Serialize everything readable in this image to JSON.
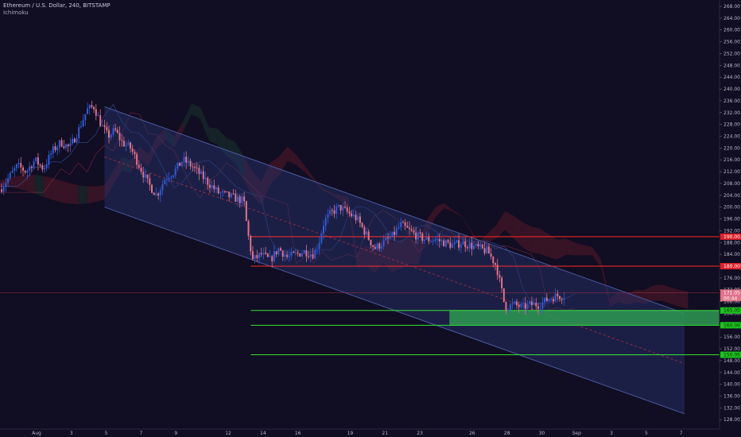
{
  "header": {
    "symbol": "Ethereum / U.S. Dollar, 240, BITSTAMP",
    "indicator": "Ichimoku"
  },
  "colors": {
    "background": "#110d22",
    "up_candle": "#2f5bd6",
    "down_candle": "#e0728a",
    "resistance_line": "#ff2a2a",
    "support_line": "#38e038",
    "channel_fill": "#2a3670",
    "support_zone": "#2e9a52",
    "cloud_bear": "#7a1f2c",
    "cloud_bull": "#1d4a34",
    "axis_text": "#b7b7c4",
    "price_label_red": "#e0202a",
    "price_label_green": "#1ec21e"
  },
  "chart_data": {
    "type": "candlestick",
    "title": "Ethereum / U.S. Dollar, 240, BITSTAMP",
    "y_ticks": [
      "268.00",
      "264.00",
      "260.00",
      "256.00",
      "252.00",
      "248.00",
      "244.00",
      "240.00",
      "236.00",
      "232.00",
      "228.00",
      "224.00",
      "220.00",
      "216.00",
      "212.00",
      "208.00",
      "204.00",
      "200.00",
      "196.00",
      "192.00",
      "188.00",
      "184.00",
      "180.00",
      "176.00",
      "172.00",
      "168.00",
      "164.00",
      "160.00",
      "156.00",
      "152.00",
      "148.00",
      "144.00",
      "140.00",
      "136.00",
      "132.00",
      "128.00"
    ],
    "ylim": [
      128,
      268
    ],
    "x_ticks": [
      {
        "label": "Aug",
        "day": 1
      },
      {
        "label": "3",
        "day": 3
      },
      {
        "label": "5",
        "day": 5
      },
      {
        "label": "7",
        "day": 7
      },
      {
        "label": "9",
        "day": 9
      },
      {
        "label": "12",
        "day": 12
      },
      {
        "label": "14",
        "day": 14
      },
      {
        "label": "16",
        "day": 16
      },
      {
        "label": "19",
        "day": 19
      },
      {
        "label": "21",
        "day": 21
      },
      {
        "label": "23",
        "day": 23
      },
      {
        "label": "26",
        "day": 26
      },
      {
        "label": "28",
        "day": 28
      },
      {
        "label": "30",
        "day": 30
      },
      {
        "label": "Sep",
        "day": 32
      },
      {
        "label": "3",
        "day": 34
      },
      {
        "label": "5",
        "day": 36
      },
      {
        "label": "7",
        "day": 38
      }
    ],
    "price_path": [
      [
        0.0,
        206
      ],
      [
        0.5,
        210
      ],
      [
        1.0,
        214
      ],
      [
        1.5,
        212
      ],
      [
        2.0,
        216
      ],
      [
        2.5,
        213
      ],
      [
        3.0,
        219
      ],
      [
        3.5,
        222
      ],
      [
        4.0,
        220
      ],
      [
        4.5,
        226
      ],
      [
        5.0,
        233
      ],
      [
        5.4,
        234
      ],
      [
        5.8,
        228
      ],
      [
        6.2,
        224
      ],
      [
        6.6,
        226
      ],
      [
        7.0,
        222
      ],
      [
        7.5,
        220
      ],
      [
        8.0,
        214
      ],
      [
        8.5,
        208
      ],
      [
        9.0,
        204
      ],
      [
        9.5,
        210
      ],
      [
        10.0,
        212
      ],
      [
        10.5,
        216
      ],
      [
        11.0,
        214
      ],
      [
        11.5,
        211
      ],
      [
        12.0,
        208
      ],
      [
        12.5,
        205
      ],
      [
        13.0,
        204
      ],
      [
        13.5,
        203
      ],
      [
        14.0,
        202
      ],
      [
        14.2,
        192
      ],
      [
        14.5,
        182
      ],
      [
        15.0,
        184
      ],
      [
        15.5,
        182
      ],
      [
        16.0,
        186
      ],
      [
        16.5,
        183
      ],
      [
        17.0,
        184
      ],
      [
        17.5,
        185
      ],
      [
        18.0,
        184
      ],
      [
        18.3,
        188
      ],
      [
        18.6,
        195
      ],
      [
        19.0,
        198
      ],
      [
        19.5,
        200
      ],
      [
        20.0,
        198
      ],
      [
        20.5,
        196
      ],
      [
        21.0,
        191
      ],
      [
        21.5,
        186
      ],
      [
        22.0,
        188
      ],
      [
        22.5,
        190
      ],
      [
        23.0,
        194
      ],
      [
        23.5,
        192
      ],
      [
        24.0,
        190
      ],
      [
        24.5,
        189
      ],
      [
        25.0,
        189
      ],
      [
        25.5,
        188
      ],
      [
        26.0,
        187
      ],
      [
        26.5,
        188
      ],
      [
        27.0,
        187
      ],
      [
        27.5,
        186
      ],
      [
        28.0,
        185
      ],
      [
        28.5,
        180
      ],
      [
        29.0,
        166
      ],
      [
        29.5,
        167
      ],
      [
        30.0,
        166
      ],
      [
        30.5,
        167
      ],
      [
        31.0,
        167
      ],
      [
        31.5,
        169
      ],
      [
        32.0,
        170
      ],
      [
        32.5,
        170
      ]
    ],
    "last_price": 171.05,
    "horizontal_levels": [
      {
        "price": 190,
        "label": "190.00",
        "color": "red",
        "start_day": 14.4
      },
      {
        "price": 180,
        "label": "180.00",
        "color": "red",
        "start_day": 14.4
      },
      {
        "price": 165,
        "label": "165.00",
        "color": "green",
        "start_day": 14.4
      },
      {
        "price": 160,
        "label": "160.00",
        "color": "green",
        "start_day": 14.4
      },
      {
        "price": 150,
        "label": "150.00",
        "color": "green",
        "start_day": 14.4
      }
    ],
    "support_zone": {
      "from_price": 160,
      "to_price": 165,
      "start_day": 25.8
    },
    "channel": {
      "start_day": 6.0,
      "end_day": 39.3,
      "upper": [
        234,
        164
      ],
      "lower": [
        200,
        130
      ],
      "mid": [
        217,
        147
      ]
    },
    "last_price_label": "171.05",
    "countdown_label": "00:44",
    "grid": false
  }
}
